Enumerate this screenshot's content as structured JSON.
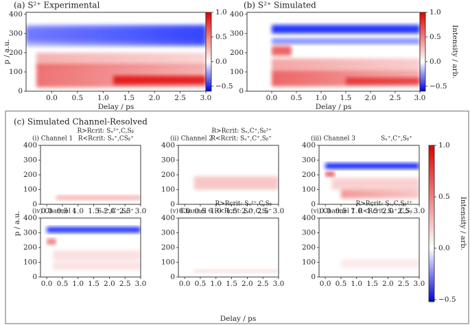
{
  "chart_data": [
    {
      "type": "heatmap",
      "title": "(a) S²⁺ Experimental",
      "xlabel": "Delay / ps",
      "ylabel": "p / a.u.",
      "xlim": [
        -0.5,
        3.0
      ],
      "ylim": [
        0,
        410
      ],
      "xticks": [
        {
          "value": 0,
          "label": "0.0"
        },
        {
          "value": 0.5,
          "label": "0.5"
        },
        {
          "value": 1,
          "label": "1.0"
        },
        {
          "value": 1.5,
          "label": "1.5"
        },
        {
          "value": 2,
          "label": "2.0"
        },
        {
          "value": 2.5,
          "label": "2.5"
        },
        {
          "value": 3,
          "label": "3.0"
        }
      ],
      "yticks": [
        0,
        100,
        200,
        300,
        400
      ],
      "colorbar": {
        "lim": [
          -0.6,
          1.0
        ],
        "ticks": [
          {
            "value": 1,
            "label": "1.0"
          },
          {
            "value": 0.5,
            "label": "0.5"
          },
          {
            "value": 0,
            "label": "0.0"
          },
          {
            "value": -0.5,
            "label": "−0.5"
          }
        ]
      }
    },
    {
      "type": "heatmap",
      "title": "(b) S²⁺ Simulated",
      "xlabel": "Delay / ps",
      "xlim": [
        -0.5,
        3.0
      ],
      "ylim": [
        0,
        410
      ],
      "xticks": [
        {
          "value": 0,
          "label": "0.0"
        },
        {
          "value": 0.5,
          "label": "0.5"
        },
        {
          "value": 1,
          "label": "1.0"
        },
        {
          "value": 1.5,
          "label": "1.5"
        },
        {
          "value": 2,
          "label": "2.0"
        },
        {
          "value": 2.5,
          "label": "2.5"
        },
        {
          "value": 3,
          "label": "3.0"
        }
      ],
      "yticks": [
        0,
        100,
        200,
        300,
        400
      ],
      "colorbar": {
        "label": "Intensity / arb.",
        "lim": [
          -0.6,
          1.0
        ],
        "ticks": [
          {
            "value": 1,
            "label": "1.0"
          },
          {
            "value": 0.5,
            "label": "0.5"
          },
          {
            "value": 0,
            "label": "0.0"
          },
          {
            "value": -0.5,
            "label": "−0.5"
          }
        ]
      }
    },
    {
      "type": "heatmap",
      "title": "(i) Channel 1",
      "notes": [
        "R>Rcrit: Sₐ²⁺,C,Sᵦ",
        "R<Rcrit: Sₐ⁺,CSᵦ⁺"
      ],
      "xlim": [
        -0.2,
        3.0
      ],
      "ylim": [
        0,
        400
      ],
      "xticks": [
        {
          "value": 0,
          "label": "0.0"
        },
        {
          "value": 0.5,
          "label": "0.5"
        },
        {
          "value": 1,
          "label": "1.0"
        },
        {
          "value": 1.5,
          "label": "1.5"
        },
        {
          "value": 2,
          "label": "2.0"
        },
        {
          "value": 2.5,
          "label": "2.5"
        },
        {
          "value": 3,
          "label": "3.0"
        }
      ],
      "yticks": [
        0,
        100,
        200,
        300,
        400
      ]
    },
    {
      "type": "heatmap",
      "title": "(ii) Channel 2",
      "notes": [
        "R>Rcrit: Sₐ,C⁺,Sᵦ²⁺",
        "R<Rcrit: Sₐ⁺,C⁺,Sᵦ⁺"
      ],
      "xlim": [
        -0.2,
        3.0
      ],
      "ylim": [
        0,
        400
      ],
      "xticks": [
        {
          "value": 0,
          "label": "0.0"
        },
        {
          "value": 0.5,
          "label": "0.5"
        },
        {
          "value": 1,
          "label": "1.0"
        },
        {
          "value": 1.5,
          "label": "1.5"
        },
        {
          "value": 2,
          "label": "2.0"
        },
        {
          "value": 2.5,
          "label": "2.5"
        },
        {
          "value": 3,
          "label": "3.0"
        }
      ],
      "yticks": [
        0,
        100,
        200,
        300,
        400
      ]
    },
    {
      "type": "heatmap",
      "title": "(iii) Channel 3",
      "notes": [
        "Sₐ⁺,C⁺,Sᵦ⁺"
      ],
      "xlim": [
        -0.2,
        3.0
      ],
      "ylim": [
        0,
        400
      ],
      "xticks": [
        {
          "value": 0,
          "label": "0.0"
        },
        {
          "value": 0.5,
          "label": "0.5"
        },
        {
          "value": 1,
          "label": "1.0"
        },
        {
          "value": 1.5,
          "label": "1.5"
        },
        {
          "value": 2,
          "label": "2.0"
        },
        {
          "value": 2.5,
          "label": "2.5"
        },
        {
          "value": 3,
          "label": "3.0"
        }
      ],
      "yticks": [
        0,
        100,
        200,
        300,
        400
      ]
    },
    {
      "type": "heatmap",
      "title": "(iv) Channel 4",
      "notes": [
        "Sₐ²⁺,C⁺,Sᵦ²⁺"
      ],
      "xlim": [
        -0.2,
        3.0
      ],
      "ylim": [
        0,
        400
      ],
      "xticks": [
        {
          "value": 0,
          "label": "0.0"
        },
        {
          "value": 0.5,
          "label": "0.5"
        },
        {
          "value": 1,
          "label": "1.0"
        },
        {
          "value": 1.5,
          "label": "1.5"
        },
        {
          "value": 2,
          "label": "2.0"
        },
        {
          "value": 2.5,
          "label": "2.5"
        },
        {
          "value": 3,
          "label": "3.0"
        }
      ],
      "yticks": [
        0,
        100,
        200,
        300,
        400
      ]
    },
    {
      "type": "heatmap",
      "title": "(v) Channel 6",
      "notes": [
        "R>Rcrit: Sₐ²⁺,C,Sᵦ",
        "R<Rcrit: Sₐ⁺,C,Sᵦ⁺"
      ],
      "xlim": [
        -0.2,
        3.0
      ],
      "ylim": [
        0,
        400
      ],
      "xticks": [
        {
          "value": 0,
          "label": "0.0"
        },
        {
          "value": 0.5,
          "label": "0.5"
        },
        {
          "value": 1,
          "label": "1.0"
        },
        {
          "value": 1.5,
          "label": "1.5"
        },
        {
          "value": 2,
          "label": "2.0"
        },
        {
          "value": 2.5,
          "label": "2.5"
        },
        {
          "value": 3,
          "label": "3.0"
        }
      ],
      "yticks": [
        0,
        100,
        200,
        300,
        400
      ]
    },
    {
      "type": "heatmap",
      "title": "(vi) Channel 7",
      "notes": [
        "R>Rcrit: Sₐ,C,Sᵦ²⁺",
        "R<Rcrit: Sₐ⁺,C,Sᵦ"
      ],
      "xlim": [
        -0.2,
        3.0
      ],
      "ylim": [
        0,
        400
      ],
      "xticks": [
        {
          "value": 0,
          "label": "0.0"
        },
        {
          "value": 0.5,
          "label": "0.5"
        },
        {
          "value": 1,
          "label": "1.0"
        },
        {
          "value": 1.5,
          "label": "1.5"
        },
        {
          "value": 2,
          "label": "2.0"
        },
        {
          "value": 2.5,
          "label": "2.5"
        },
        {
          "value": 3,
          "label": "3.0"
        }
      ],
      "yticks": [
        0,
        100,
        200,
        300,
        400
      ]
    }
  ],
  "panel_c": {
    "title": "(c) Simulated Channel-Resolved",
    "xlabel": "Delay / ps",
    "ylabel": "p / a.u.",
    "colorbar": {
      "label": "Intensity / arb.",
      "lim": [
        -0.52,
        1.0
      ],
      "ticks": [
        {
          "value": 1,
          "label": "1.0"
        },
        {
          "value": 0.5,
          "label": "0.5"
        },
        {
          "value": 0,
          "label": "0.0"
        },
        {
          "value": -0.5,
          "label": "−0.5"
        }
      ]
    }
  }
}
